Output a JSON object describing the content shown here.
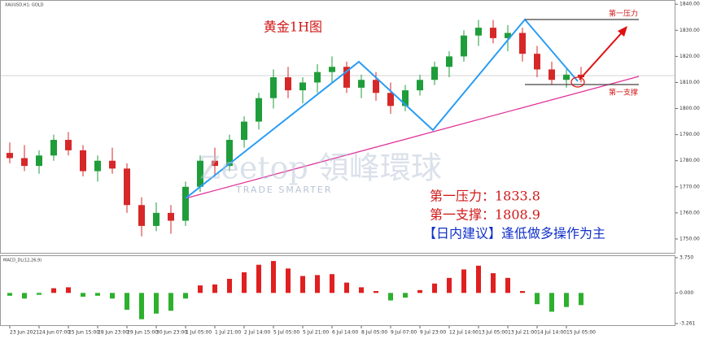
{
  "chart_data": [
    {
      "type": "candlestick",
      "header": "XAUUSD,H1: GOLD",
      "title": "黄金1H图",
      "labels": {
        "resistance": "第一压力",
        "support": "第一支撑",
        "resistance_note": "第一压力：1833.8",
        "support_note": "第一支撑：1808.9",
        "advice": "【日内建议】逢低做多操作为主"
      },
      "watermark": {
        "brand": "Zeetop 領峰環球",
        "slogan": "TRADE SMARTER"
      },
      "categories": [
        "23 Jun 2021",
        null,
        "24 Jun 07:00",
        null,
        "25 Jun 15:00",
        null,
        "28 Jun 23:00",
        null,
        "29 Jun 15:00",
        null,
        "30 Jun 23:00",
        null,
        "1 Jul 05:00",
        null,
        "1 Jul 21:00",
        null,
        "2 Jul 14:00",
        null,
        "5 Jul 05:00",
        null,
        "5 Jul 21:00",
        null,
        "6 Jul 14:00",
        null,
        "8 Jul 05:00",
        null,
        "9 Jul 07:00",
        null,
        "9 Jul 23:00",
        null,
        "12 Jul 14:00",
        null,
        "13 Jul 05:00",
        null,
        "13 Jul 21:00",
        null,
        "14 Jul 14:00",
        null,
        "15 Jul 05:00",
        null
      ],
      "open": [
        1783,
        1781,
        1778,
        1782,
        1788,
        1784,
        1776,
        1780,
        1777,
        1763,
        1755,
        1760,
        1757,
        1770,
        1780,
        1778,
        1788,
        1795,
        1804,
        1812,
        1807,
        1810,
        1814,
        1816,
        1808,
        1811,
        1806,
        1801,
        1807,
        1811,
        1816,
        1820,
        1828,
        1831,
        1827,
        1829,
        1821,
        1815,
        1811,
        1813
      ],
      "high": [
        1787,
        1786,
        1784,
        1790,
        1791,
        1786,
        1782,
        1785,
        1779,
        1766,
        1764,
        1763,
        1772,
        1782,
        1785,
        1790,
        1797,
        1806,
        1815,
        1816,
        1812,
        1817,
        1820,
        1818,
        1813,
        1814,
        1810,
        1809,
        1813,
        1818,
        1822,
        1830,
        1834,
        1834,
        1832,
        1831,
        1824,
        1818,
        1815,
        1816
      ],
      "low": [
        1779,
        1776,
        1775,
        1780,
        1782,
        1774,
        1772,
        1775,
        1760,
        1751,
        1753,
        1752,
        1755,
        1768,
        1774,
        1776,
        1785,
        1792,
        1800,
        1804,
        1802,
        1806,
        1810,
        1806,
        1804,
        1803,
        1798,
        1799,
        1805,
        1809,
        1812,
        1818,
        1824,
        1825,
        1822,
        1818,
        1812,
        1809,
        1808,
        1810
      ],
      "close": [
        1781,
        1778,
        1782,
        1788,
        1784,
        1776,
        1780,
        1777,
        1763,
        1755,
        1760,
        1757,
        1770,
        1780,
        1778,
        1788,
        1795,
        1804,
        1812,
        1807,
        1810,
        1814,
        1816,
        1808,
        1811,
        1806,
        1801,
        1807,
        1811,
        1816,
        1820,
        1828,
        1831,
        1827,
        1829,
        1821,
        1815,
        1811,
        1813,
        1812
      ],
      "up_color": "#1f9d3a",
      "down_color": "#d62828",
      "ylim": [
        1745,
        1841
      ],
      "yticks": [
        {
          "value": 1750,
          "label": "1750.00"
        },
        {
          "value": 1760,
          "label": "1760.00"
        },
        {
          "value": 1770,
          "label": "1770.00"
        },
        {
          "value": 1780,
          "label": "1780.00"
        },
        {
          "value": 1790,
          "label": "1790.00"
        },
        {
          "value": 1800,
          "label": "1800.00"
        },
        {
          "value": 1810,
          "label": "1810.00"
        },
        {
          "value": 1820,
          "label": "1820.00"
        },
        {
          "value": 1830,
          "label": "1830.00"
        },
        {
          "value": 1840,
          "label": "1840.00"
        }
      ]
    },
    {
      "type": "bar",
      "title": "MACD_DL(12,26,9)",
      "values": [
        -0.3,
        -0.6,
        -0.2,
        0.5,
        0.6,
        -0.4,
        -0.3,
        -0.6,
        -1.8,
        -2.8,
        -2.2,
        -1.9,
        -0.6,
        0.8,
        0.9,
        1.5,
        2.2,
        3.0,
        3.4,
        2.6,
        1.8,
        1.9,
        2.0,
        1.1,
        0.6,
        0.2,
        -0.8,
        -0.5,
        0.3,
        1.0,
        1.6,
        2.5,
        2.9,
        2.1,
        1.6,
        0.2,
        -1.2,
        -2.0,
        -1.5,
        -1.3
      ],
      "up_color": "#e02020",
      "down_color": "#2db02d",
      "ylim": [
        -3.261,
        3.75
      ],
      "yticks": [
        {
          "value": -3.261,
          "label": "-3.261"
        },
        {
          "value": 0,
          "label": "0.000"
        },
        {
          "value": 3.75,
          "label": "3.750"
        }
      ]
    }
  ]
}
